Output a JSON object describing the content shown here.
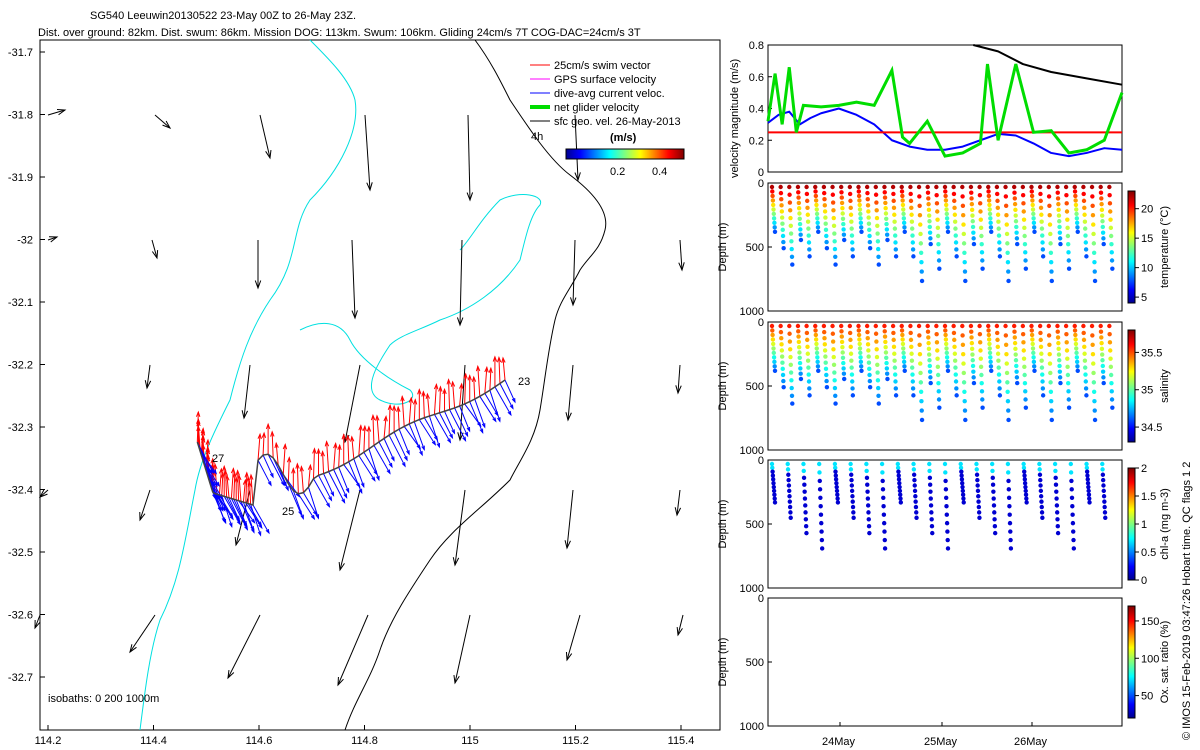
{
  "title_line1": "SG540 Leeuwin20130522 23-May 00Z to 26-May 23Z.",
  "title_line2": "Dist. over ground: 82km. Dist. swum: 86km. Mission DOG: 113km. Swum: 106km. Gliding 24cm/s 7T COG-DAC=24cm/s 3T",
  "map": {
    "lat_ticks": [
      "-31.7",
      "-31.8",
      "-31.9",
      "-32",
      "-32.1",
      "-32.2",
      "-32.3",
      "-32.4",
      "-32.5",
      "-32.6",
      "-32.7"
    ],
    "lon_ticks": [
      "114.2",
      "114.4",
      "114.6",
      "114.8",
      "115",
      "115.2",
      "115.4"
    ],
    "legend": [
      {
        "label": "25cm/s swim vector",
        "color": "#ff0000"
      },
      {
        "label": "GPS surface velocity",
        "color": "#ff00ff"
      },
      {
        "label": "dive-avg current veloc.",
        "color": "#0000ff"
      },
      {
        "label": "net glider velocity",
        "color": "#00dd00"
      },
      {
        "label": "sfc geo. vel. 26-May-2013",
        "color": "#000000"
      }
    ],
    "colorbar_title": "(m/s)",
    "colorbar_ticks": [
      "0.2",
      "0.4"
    ],
    "timer_label": "4h",
    "day_labels": [
      "23",
      "25",
      "27"
    ],
    "isobaths_label": "isobaths: 0   200  1000m"
  },
  "chart_data": [
    {
      "type": "line",
      "title": "velocity magnitude",
      "ylabel": "velocity magnitude (m/s)",
      "ylim": [
        0,
        0.8
      ],
      "yticks": [
        "0",
        "0.2",
        "0.4",
        "0.6",
        "0.8"
      ],
      "series": [
        {
          "name": "dive-avg current",
          "color": "#0000ff",
          "x": [
            0,
            0.03,
            0.06,
            0.09,
            0.12,
            0.15,
            0.2,
            0.25,
            0.3,
            0.35,
            0.4,
            0.45,
            0.5,
            0.55,
            0.6,
            0.65,
            0.7,
            0.75,
            0.8,
            0.85,
            0.9,
            0.95,
            1.0
          ],
          "values": [
            0.31,
            0.36,
            0.38,
            0.3,
            0.34,
            0.37,
            0.4,
            0.36,
            0.3,
            0.2,
            0.16,
            0.14,
            0.14,
            0.16,
            0.2,
            0.24,
            0.23,
            0.18,
            0.12,
            0.1,
            0.12,
            0.15,
            0.14
          ]
        },
        {
          "name": "reference 25cm/s",
          "color": "#ff0000",
          "x": [
            0,
            1
          ],
          "values": [
            0.25,
            0.25
          ]
        },
        {
          "name": "mission DOG",
          "color": "#000000",
          "x": [
            0.58,
            0.65,
            0.72,
            0.8,
            0.9,
            1.0
          ],
          "values": [
            0.8,
            0.76,
            0.68,
            0.63,
            0.59,
            0.55
          ]
        },
        {
          "name": "net glider",
          "color": "#00dd00",
          "x": [
            0,
            0.02,
            0.04,
            0.06,
            0.08,
            0.1,
            0.15,
            0.2,
            0.25,
            0.3,
            0.35,
            0.38,
            0.4,
            0.45,
            0.5,
            0.55,
            0.6,
            0.62,
            0.65,
            0.7,
            0.75,
            0.8,
            0.85,
            0.9,
            0.95,
            1.0
          ],
          "values": [
            0.32,
            0.62,
            0.3,
            0.66,
            0.25,
            0.42,
            0.41,
            0.42,
            0.44,
            0.42,
            0.64,
            0.22,
            0.18,
            0.32,
            0.1,
            0.12,
            0.18,
            0.68,
            0.2,
            0.68,
            0.25,
            0.26,
            0.12,
            0.14,
            0.2,
            0.5
          ]
        }
      ]
    },
    {
      "type": "scatter",
      "ylabel": "Depth (m)",
      "ylim": [
        1000,
        0
      ],
      "yticks": [
        "0",
        "500",
        "1000"
      ],
      "colorbar_label": "temperature (°C)",
      "colorbar_ticks": [
        "5",
        "10",
        "15",
        "20"
      ],
      "clim": [
        4,
        23
      ]
    },
    {
      "type": "scatter",
      "ylabel": "Depth (m)",
      "ylim": [
        1000,
        0
      ],
      "yticks": [
        "0",
        "500",
        "1000"
      ],
      "colorbar_label": "salinity",
      "colorbar_ticks": [
        "34.5",
        "35",
        "35.5"
      ],
      "clim": [
        34.3,
        35.8
      ]
    },
    {
      "type": "scatter",
      "ylabel": "Depth (m)",
      "ylim": [
        1000,
        0
      ],
      "yticks": [
        "0",
        "500",
        "1000"
      ],
      "colorbar_label": "chl-a (mg m-3)",
      "colorbar_ticks": [
        "0",
        "0.5",
        "1",
        "1.5",
        "2"
      ],
      "clim": [
        0,
        2
      ]
    },
    {
      "type": "scatter",
      "ylabel": "Depth (m)",
      "ylim": [
        1000,
        0
      ],
      "yticks": [
        "0",
        "500",
        "1000"
      ],
      "colorbar_label": "Ox. sat. ratio (%)",
      "colorbar_ticks": [
        "50",
        "100",
        "150"
      ],
      "clim": [
        20,
        170
      ]
    }
  ],
  "xdate_ticks": [
    "24May",
    "25May",
    "26May"
  ],
  "watermark": "© IMOS 15-Feb-2019 03:47:26 Hobart time. QC flags 1  2"
}
